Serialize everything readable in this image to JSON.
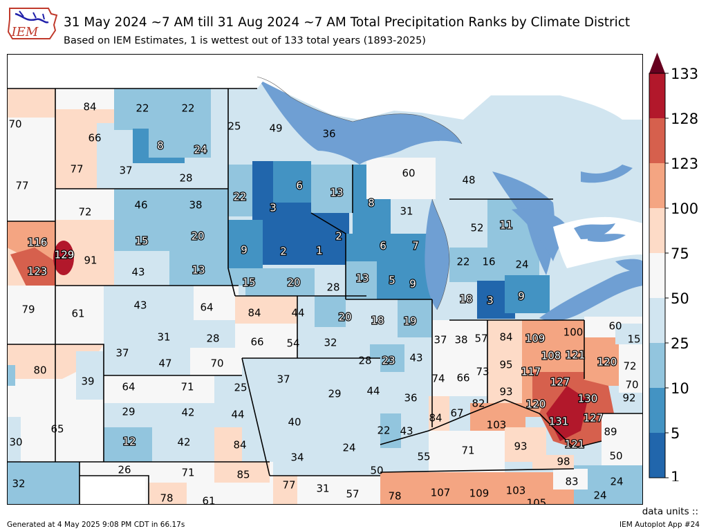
{
  "header": {
    "logo_text": "IEM",
    "title": "31 May 2024 ~7 AM till 31 Aug 2024 ~7 AM Total Precipitation Ranks by Climate District",
    "subtitle": "Based on IEM Estimates, 1 is wettest out of 133 total years (1893-2025)"
  },
  "colorbar": {
    "ticks": [
      "133",
      "128",
      "123",
      "100",
      "75",
      "50",
      "25",
      "10",
      "5",
      "1"
    ],
    "colors": [
      "#b2182b",
      "#d6604d",
      "#f4a582",
      "#fddbc7",
      "#f7f7f7",
      "#d1e5f0",
      "#92c5de",
      "#4393c3",
      "#2166ac"
    ],
    "over_color": "#67001f",
    "units_label": "data units ::"
  },
  "footer": {
    "generated": "Generated at 4 May 2025 9:08 PM CDT in 66.17s",
    "app": "IEM Autoplot App #24"
  },
  "map": {
    "water_color": "#6f9fd3",
    "district_ranks": [
      "84",
      "22",
      "22",
      "70",
      "66",
      "8",
      "24",
      "25",
      "49",
      "36",
      "77",
      "37",
      "28",
      "77",
      "60",
      "48",
      "72",
      "46",
      "38",
      "22",
      "3",
      "6",
      "13",
      "8",
      "31",
      "11",
      "52",
      "116",
      "129",
      "91",
      "15",
      "20",
      "9",
      "2",
      "1",
      "2",
      "6",
      "7",
      "22",
      "16",
      "24",
      "123",
      "43",
      "13",
      "15",
      "20",
      "28",
      "13",
      "5",
      "9",
      "18",
      "3",
      "9",
      "79",
      "61",
      "43",
      "64",
      "84",
      "44",
      "20",
      "18",
      "19",
      "60",
      "15",
      "31",
      "28",
      "66",
      "54",
      "32",
      "37",
      "38",
      "57",
      "84",
      "109",
      "100",
      "37",
      "47",
      "70",
      "28",
      "23",
      "43",
      "95",
      "108",
      "121",
      "120",
      "72",
      "80",
      "39",
      "74",
      "66",
      "73",
      "117",
      "127",
      "70",
      "64",
      "71",
      "25",
      "37",
      "29",
      "44",
      "36",
      "93",
      "82",
      "120",
      "130",
      "92",
      "29",
      "42",
      "44",
      "40",
      "84",
      "67",
      "103",
      "131",
      "127",
      "65",
      "12",
      "42",
      "84",
      "22",
      "43",
      "55",
      "71",
      "93",
      "121",
      "89",
      "30",
      "24",
      "34",
      "98",
      "50",
      "26",
      "71",
      "85",
      "50",
      "83",
      "24",
      "32",
      "77",
      "31",
      "57",
      "78",
      "107",
      "109",
      "103",
      "105",
      "24",
      "78",
      "61"
    ]
  }
}
